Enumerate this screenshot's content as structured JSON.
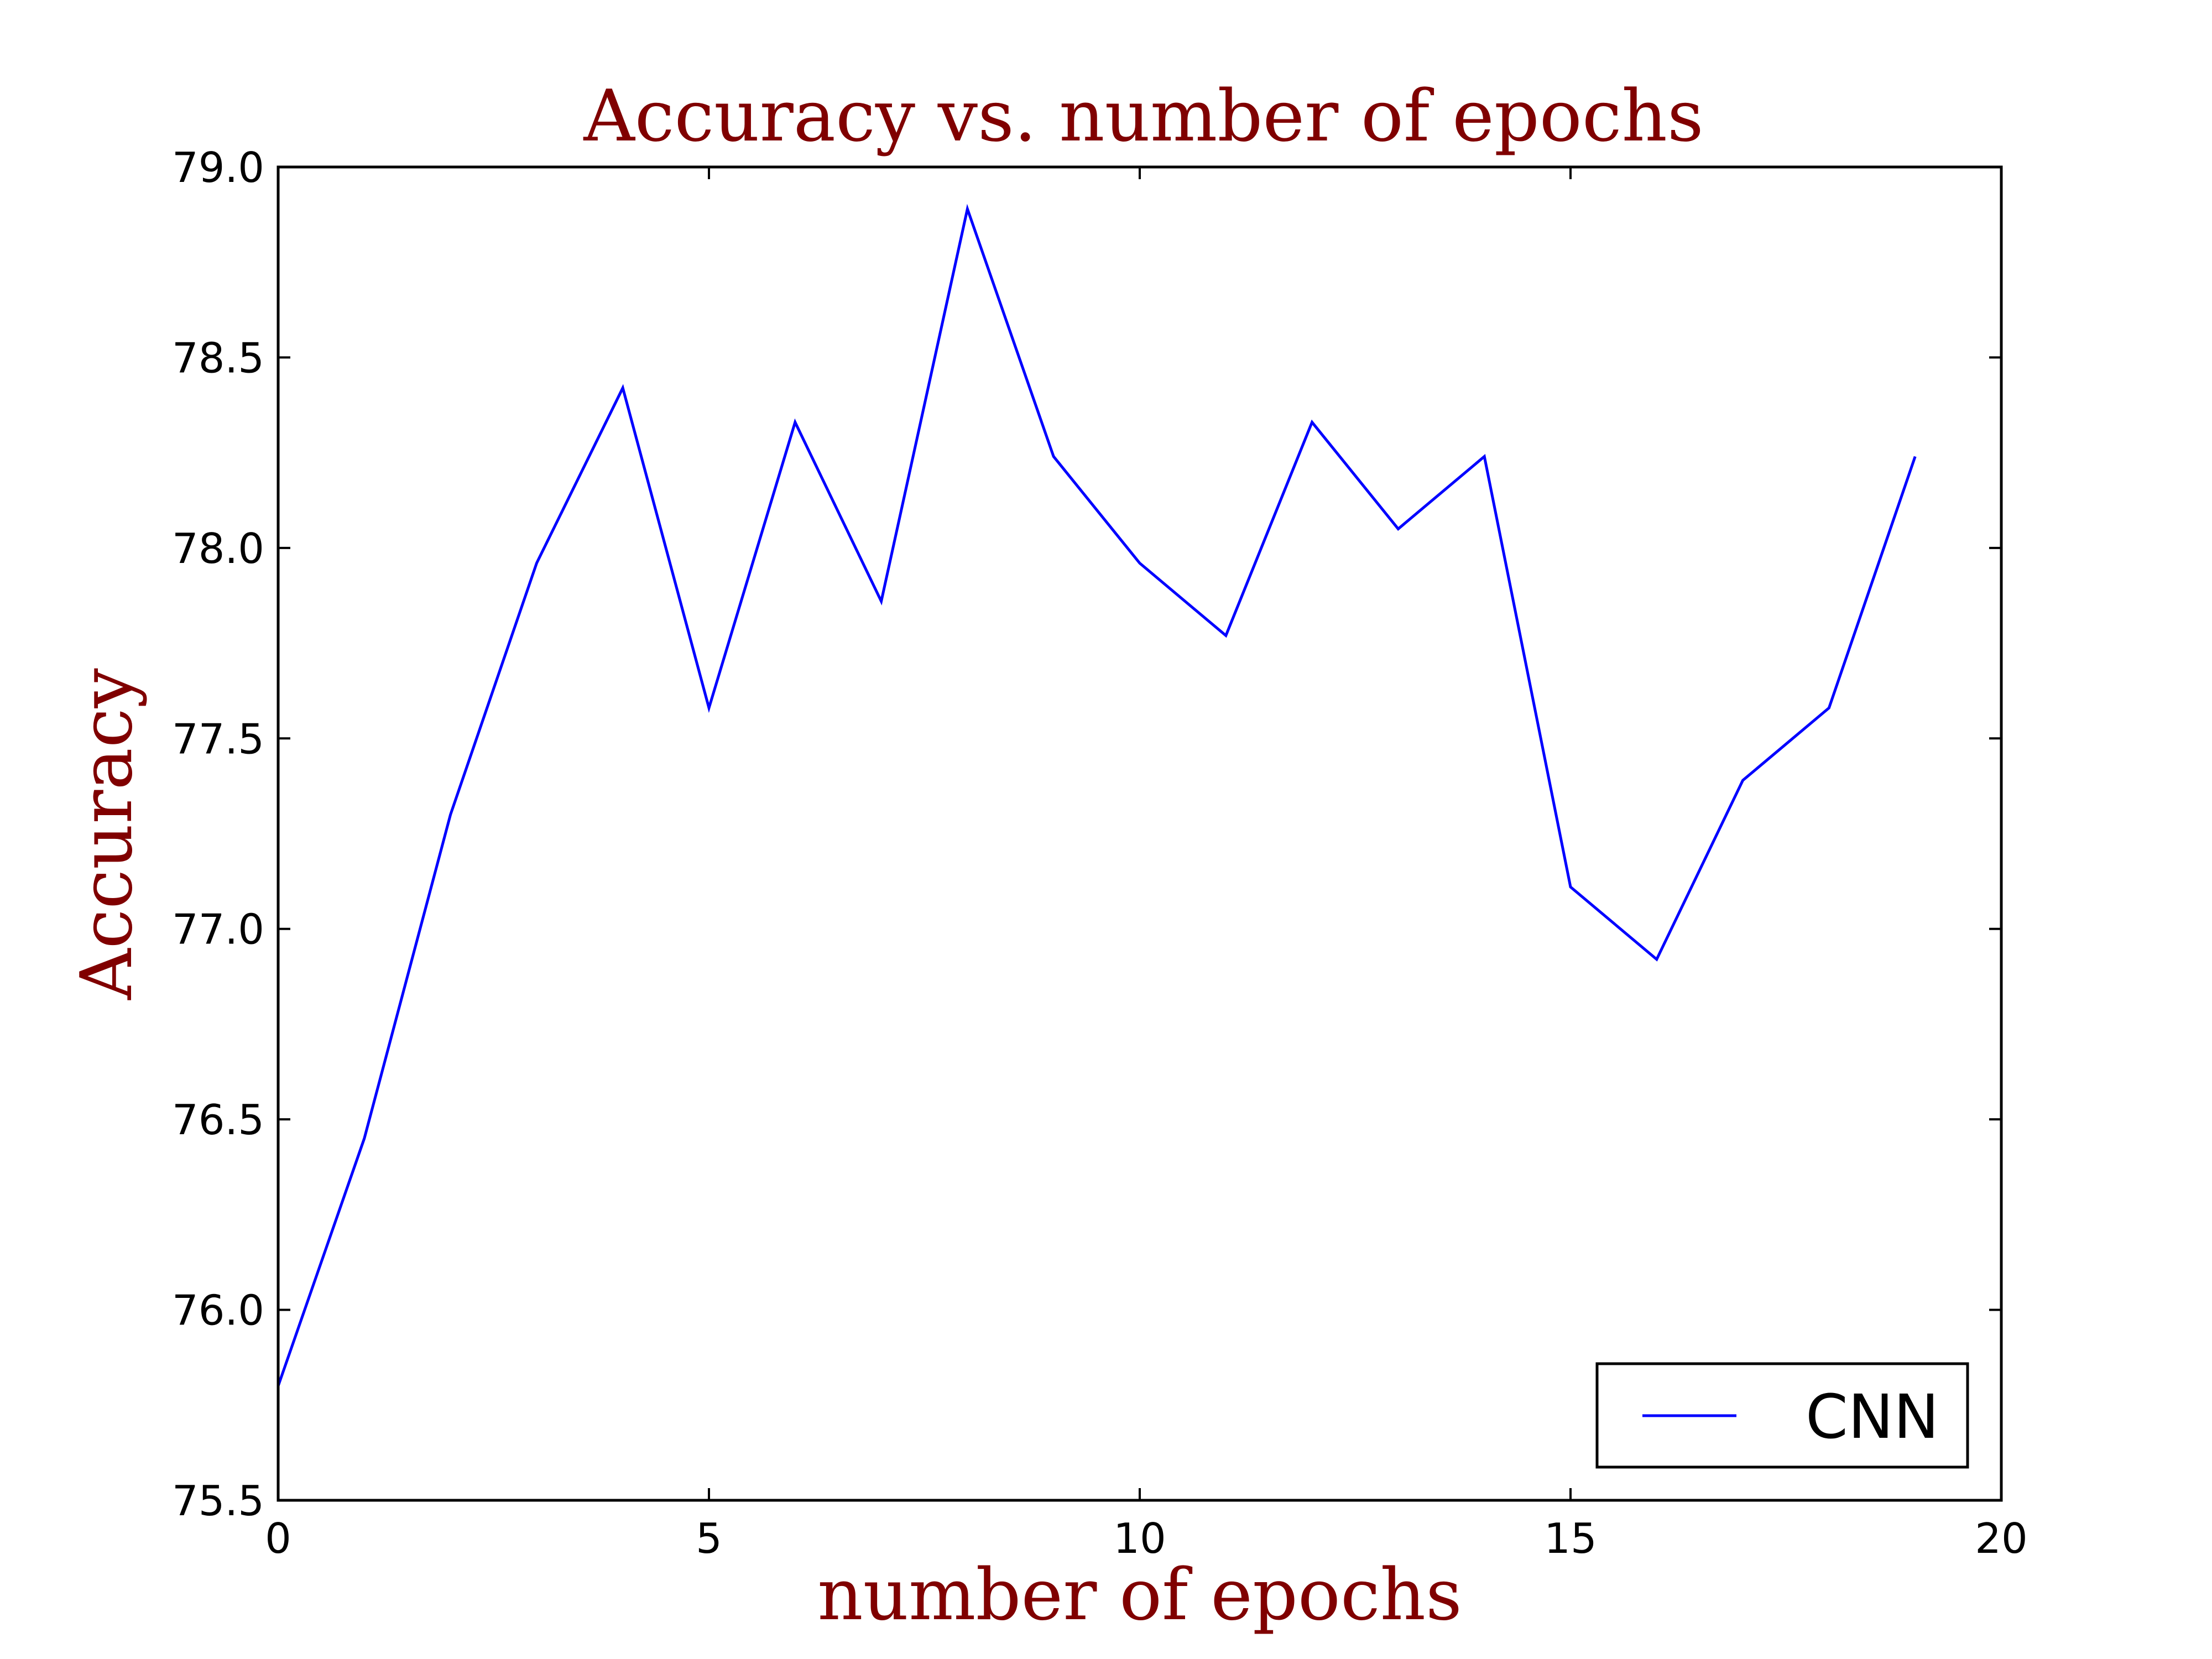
{
  "chart_data": {
    "type": "line",
    "title": "Accuracy vs. number of epochs",
    "xlabel": "number of epochs",
    "ylabel": "Accuracy",
    "xlim": [
      0,
      20
    ],
    "ylim": [
      75.5,
      79.0
    ],
    "xticks": [
      0,
      5,
      10,
      15,
      20
    ],
    "xtick_labels": [
      "0",
      "5",
      "10",
      "15",
      "20"
    ],
    "yticks": [
      75.5,
      76.0,
      76.5,
      77.0,
      77.5,
      78.0,
      78.5,
      79.0
    ],
    "ytick_labels": [
      "75.5",
      "76.0",
      "76.5",
      "77.0",
      "77.5",
      "78.0",
      "78.5",
      "79.0"
    ],
    "grid": false,
    "legend_position": "lower-right",
    "title_color": "#800000",
    "series": [
      {
        "name": "CNN",
        "color": "#0000ff",
        "x": [
          0,
          1,
          2,
          3,
          4,
          5,
          6,
          7,
          8,
          9,
          10,
          11,
          12,
          13,
          14,
          15,
          16,
          17,
          18,
          19
        ],
        "values": [
          75.8,
          76.45,
          77.3,
          77.96,
          78.42,
          77.58,
          78.33,
          77.86,
          78.89,
          78.24,
          77.96,
          77.77,
          78.33,
          78.05,
          78.24,
          77.11,
          76.92,
          77.39,
          77.58,
          78.24
        ]
      }
    ]
  }
}
